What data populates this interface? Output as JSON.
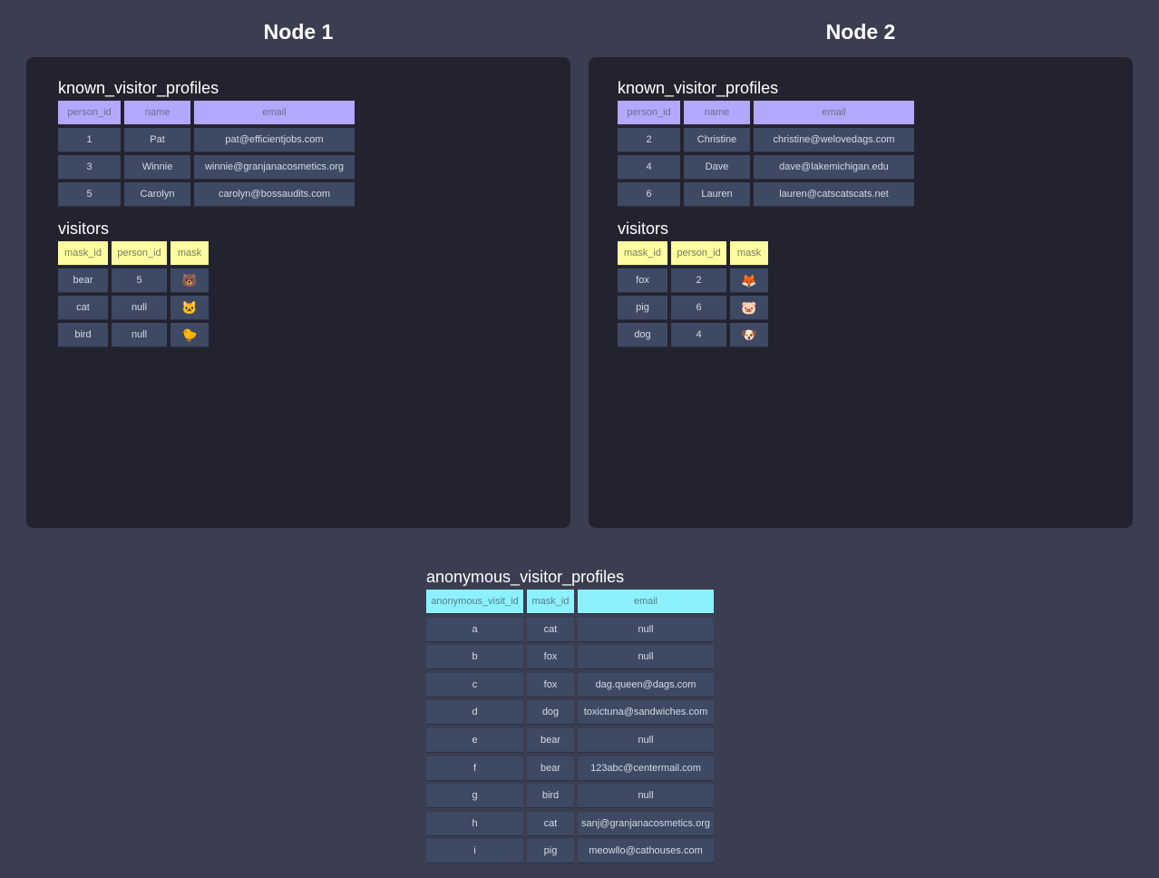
{
  "nodes": [
    {
      "title": "Node 1",
      "known_visitor_profiles": {
        "title": "known_visitor_profiles",
        "columns": [
          "person_id",
          "name",
          "email"
        ],
        "rows": [
          [
            "1",
            "Pat",
            "pat@efficientjobs.com"
          ],
          [
            "3",
            "Winnie",
            "winnie@granjanacosmetics.org"
          ],
          [
            "5",
            "Carolyn",
            "carolyn@bossaudits.com"
          ]
        ]
      },
      "visitors": {
        "title": "visitors",
        "columns": [
          "mask_id",
          "person_id",
          "mask"
        ],
        "rows": [
          [
            "bear",
            "5",
            "🐻"
          ],
          [
            "cat",
            "null",
            "🐱"
          ],
          [
            "bird",
            "null",
            "🐤"
          ]
        ]
      }
    },
    {
      "title": "Node 2",
      "known_visitor_profiles": {
        "title": "known_visitor_profiles",
        "columns": [
          "person_id",
          "name",
          "email"
        ],
        "rows": [
          [
            "2",
            "Christine",
            "christine@welovedags.com"
          ],
          [
            "4",
            "Dave",
            "dave@lakemichigan.edu"
          ],
          [
            "6",
            "Lauren",
            "lauren@catscatscats.net"
          ]
        ]
      },
      "visitors": {
        "title": "visitors",
        "columns": [
          "mask_id",
          "person_id",
          "mask"
        ],
        "rows": [
          [
            "fox",
            "2",
            "🦊"
          ],
          [
            "pig",
            "6",
            "🐷"
          ],
          [
            "dog",
            "4",
            "🐶"
          ]
        ]
      }
    }
  ],
  "anonymous_visitor_profiles": {
    "title": "anonymous_visitor_profiles",
    "columns": [
      "anonymous_visit_id",
      "mask_id",
      "email"
    ],
    "rows": [
      [
        "a",
        "cat",
        "null"
      ],
      [
        "b",
        "fox",
        "null"
      ],
      [
        "c",
        "fox",
        "dag.queen@dags.com"
      ],
      [
        "d",
        "dog",
        "toxictuna@sandwiches.com"
      ],
      [
        "e",
        "bear",
        "null"
      ],
      [
        "f",
        "bear",
        "123abc@centermail.com"
      ],
      [
        "g",
        "bird",
        "null"
      ],
      [
        "h",
        "cat",
        "sanj@granjanacosmetics.org"
      ],
      [
        "i",
        "pig",
        "meowllo@cathouses.com"
      ]
    ]
  },
  "colors": {
    "known_header": "#b3a8ff",
    "visitors_header": "#fdfd9f",
    "anonymous_header": "#8cf1ff",
    "cell": "#3e4963",
    "panel": "#23232f",
    "background": "#3b3e51"
  }
}
